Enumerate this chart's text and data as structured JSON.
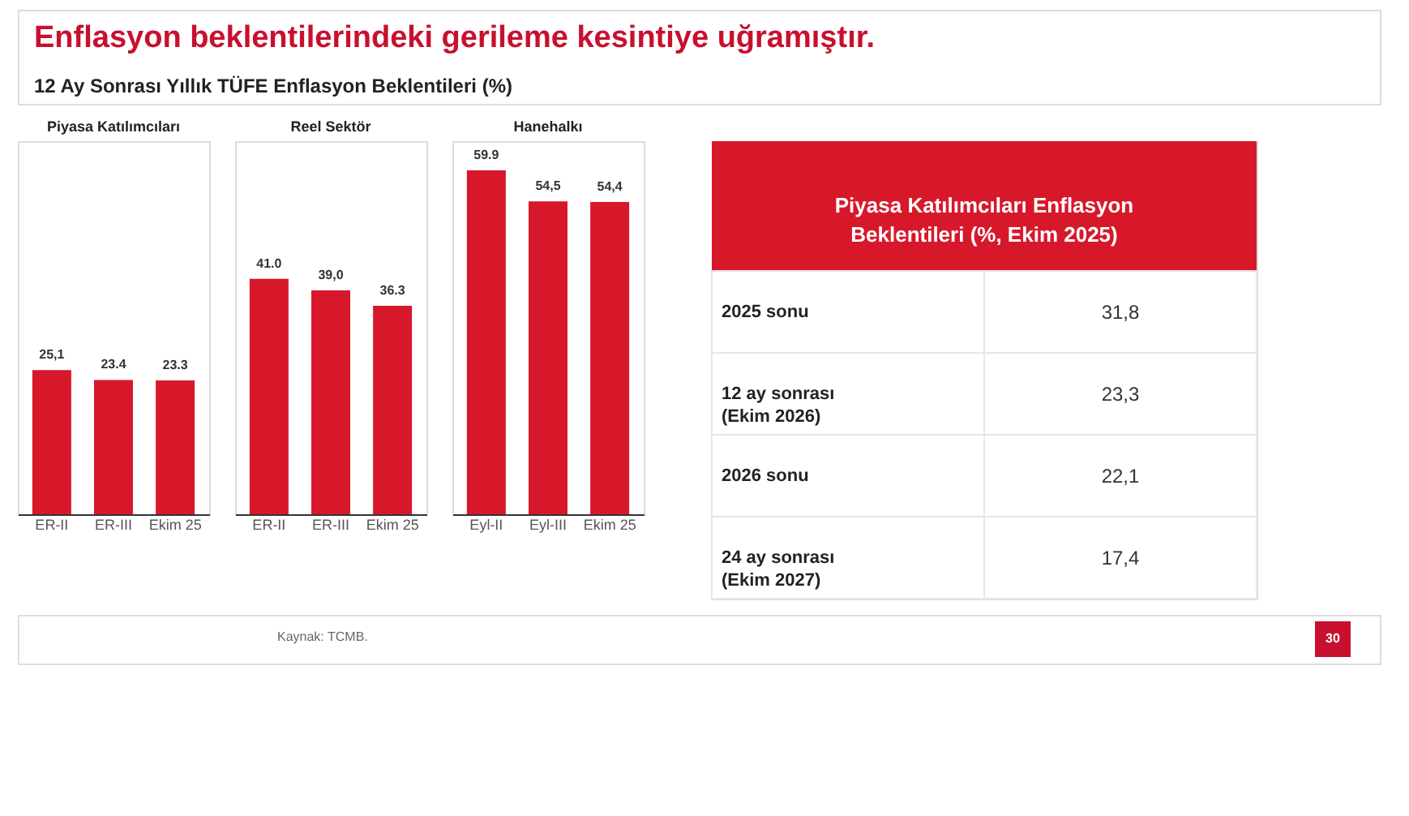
{
  "chart_data": [
    {
      "type": "other",
      "title": "Enflasyon beklentilerindeki gerileme kesintiye uğramıştır.",
      "subtitle": "12 Ay Sonrası Yıllık TÜFE Enflasyon Beklentileri (%)",
      "annotations": [
        "Kaynak: TCMB.",
        "30"
      ]
    },
    {
      "type": "bar",
      "title": "Piyasa Katılımcıları",
      "categories": [
        "ER-II",
        "ER-III",
        "Ekim 25"
      ],
      "values": [
        25.1,
        23.4,
        23.3
      ],
      "value_labels": [
        "25,1",
        "23.4",
        "23.3"
      ],
      "color": "#d7182a",
      "ylim": [
        0,
        65
      ],
      "tick_labels": "x"
    },
    {
      "type": "bar",
      "title": "Reel Sektör",
      "categories": [
        "ER-II",
        "ER-III",
        "Ekim 25"
      ],
      "values": [
        41.0,
        39.0,
        36.3
      ],
      "value_labels": [
        "41.0",
        "39,0",
        "36.3"
      ],
      "color": "#d7182a",
      "ylim": [
        0,
        65
      ],
      "tick_labels": "x"
    },
    {
      "type": "bar",
      "title": "Hanehalkı",
      "categories": [
        "Eyl-II",
        "Eyl-III",
        "Ekim 25"
      ],
      "values": [
        59.9,
        54.5,
        54.4
      ],
      "value_labels": [
        "59.9",
        "54,5",
        "54,4"
      ],
      "color": "#d7182a",
      "ylim": [
        0,
        65
      ],
      "tick_labels": "x"
    },
    {
      "type": "other",
      "title": "Piyasa Katılımcıları Enflasyon Beklentileri (%, Ekim 2025)",
      "color": "#d7182a",
      "annotations": [
        "2025 sonu",
        "31,8",
        "12 ay sonrası (Ekim 2026)",
        "23,3",
        "2026 sonu",
        "22,1",
        "24 ay sonrası (Ekim 2027)",
        "17,4"
      ]
    }
  ]
}
